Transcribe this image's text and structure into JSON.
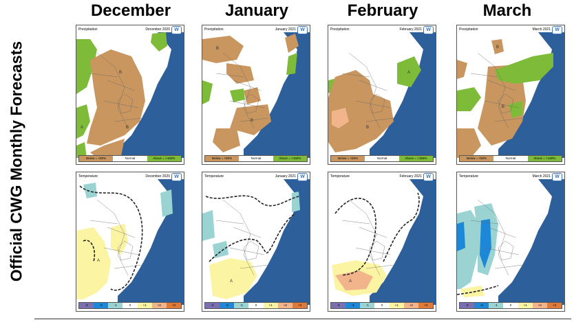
{
  "side_title": "Official CWG Monthly Forecasts",
  "months": [
    "December",
    "January",
    "February",
    "March"
  ],
  "logo_icon": "cwg-logo-icon",
  "colors": {
    "ocean": "#2d5f9a",
    "dry": "#c8965e",
    "wet": "#7dbb38",
    "warm1": "#fbf4a2",
    "warm2": "#f2b48a",
    "cool1": "#9bd3d3",
    "cool2": "#1e88d8"
  },
  "precip_panels": [
    {
      "header_left": "Precipitation",
      "header_right": "December 2020"
    },
    {
      "header_left": "Precipitation",
      "header_right": "January 2021"
    },
    {
      "header_left": "Precipitation",
      "header_right": "February 2021"
    },
    {
      "header_left": "Precipitation",
      "header_right": "March 2021"
    }
  ],
  "temp_panels": [
    {
      "header_left": "Temperature",
      "header_right": "December 2020"
    },
    {
      "header_left": "Temperature",
      "header_right": "January 2021"
    },
    {
      "header_left": "Temperature",
      "header_right": "February 2021"
    },
    {
      "header_left": "Temperature",
      "header_right": "March 2021"
    }
  ],
  "precip_legend": [
    {
      "label": "Below = <50%",
      "color": "#c8965e"
    },
    {
      "label": "Normal",
      "color": "#ffffff"
    },
    {
      "label": "Above = >150%",
      "color": "#7dbb38"
    }
  ],
  "temp_legend": [
    {
      "label": "-3",
      "color": "#7a6fb0"
    },
    {
      "label": "-2",
      "color": "#1e88d8"
    },
    {
      "label": "-1",
      "color": "#9bd3d3"
    },
    {
      "label": "0",
      "color": "#ffffff"
    },
    {
      "label": "+1",
      "color": "#fbf4a2"
    },
    {
      "label": "+2",
      "color": "#f2b48a"
    },
    {
      "label": "+3",
      "color": "#e07a3a"
    }
  ]
}
